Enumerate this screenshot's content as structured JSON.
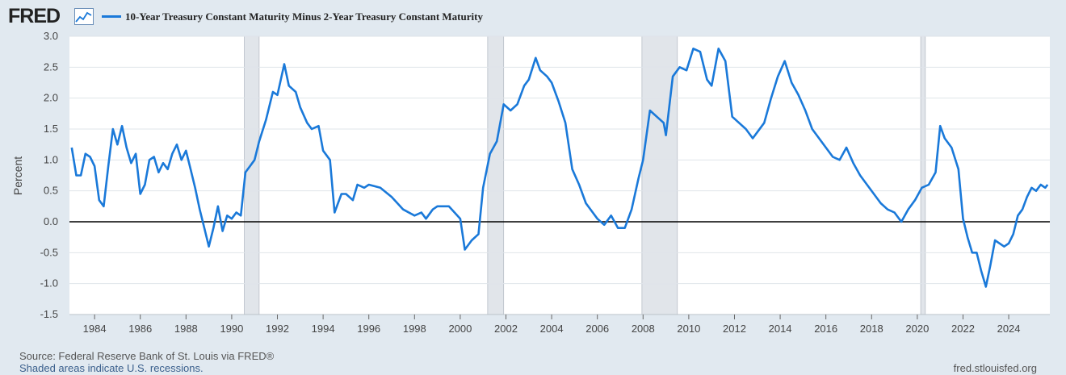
{
  "header": {
    "logo": "FRED",
    "legend_label": "10-Year Treasury Constant Maturity Minus 2-Year Treasury Constant Maturity"
  },
  "footer": {
    "source": "Source: Federal Reserve Bank of St. Louis via FRED®",
    "recession_note": "Shaded areas indicate U.S. recessions.",
    "site": "fred.stlouisfed.org"
  },
  "colors": {
    "line": "#1a79d9",
    "background": "#e1e9f0",
    "plot": "#ffffff",
    "recession": "#e1e5ea",
    "grid": "#dfe4ea"
  },
  "chart_data": {
    "type": "line",
    "title": "",
    "xlabel": "",
    "ylabel": "Percent",
    "xlim": [
      1982.9,
      2025.8
    ],
    "ylim": [
      -1.5,
      3.0
    ],
    "grid": true,
    "zero_line": true,
    "y_ticks": [
      3.0,
      2.5,
      2.0,
      1.5,
      1.0,
      0.5,
      0.0,
      -0.5,
      -1.0,
      -1.5
    ],
    "y_tick_labels": [
      "3.0",
      "2.5",
      "2.0",
      "1.5",
      "1.0",
      "0.5",
      "0.0",
      "-0.5",
      "-1.0",
      "-1.5"
    ],
    "x_ticks": [
      1984,
      1986,
      1988,
      1990,
      1992,
      1994,
      1996,
      1998,
      2000,
      2002,
      2004,
      2006,
      2008,
      2010,
      2012,
      2014,
      2016,
      2018,
      2020,
      2022,
      2024
    ],
    "x_tick_labels": [
      "1984",
      "1986",
      "1988",
      "1990",
      "1992",
      "1994",
      "1996",
      "1998",
      "2000",
      "2002",
      "2004",
      "2006",
      "2008",
      "2010",
      "2012",
      "2014",
      "2016",
      "2018",
      "2020",
      "2022",
      "2024"
    ],
    "recessions": [
      [
        1990.55,
        1991.2
      ],
      [
        2001.2,
        2001.9
      ],
      [
        2007.95,
        2009.5
      ],
      [
        2020.15,
        2020.35
      ]
    ],
    "series": [
      {
        "name": "10-Year Treasury Constant Maturity Minus 2-Year Treasury Constant Maturity",
        "x": [
          1983.0,
          1983.2,
          1983.4,
          1983.6,
          1983.8,
          1984.0,
          1984.2,
          1984.4,
          1984.6,
          1984.8,
          1985.0,
          1985.2,
          1985.4,
          1985.6,
          1985.8,
          1986.0,
          1986.2,
          1986.4,
          1986.6,
          1986.8,
          1987.0,
          1987.2,
          1987.4,
          1987.6,
          1987.8,
          1988.0,
          1988.2,
          1988.4,
          1988.6,
          1988.8,
          1989.0,
          1989.2,
          1989.4,
          1989.6,
          1989.8,
          1990.0,
          1990.2,
          1990.4,
          1990.6,
          1990.8,
          1991.0,
          1991.2,
          1991.5,
          1991.8,
          1992.0,
          1992.3,
          1992.5,
          1992.8,
          1993.0,
          1993.3,
          1993.5,
          1993.8,
          1994.0,
          1994.3,
          1994.5,
          1994.8,
          1995.0,
          1995.3,
          1995.5,
          1995.8,
          1996.0,
          1996.5,
          1997.0,
          1997.5,
          1998.0,
          1998.3,
          1998.5,
          1998.8,
          1999.0,
          1999.5,
          2000.0,
          2000.2,
          2000.5,
          2000.8,
          2001.0,
          2001.3,
          2001.6,
          2001.9,
          2002.2,
          2002.5,
          2002.8,
          2003.0,
          2003.3,
          2003.5,
          2003.8,
          2004.0,
          2004.3,
          2004.6,
          2004.9,
          2005.2,
          2005.5,
          2005.8,
          2006.0,
          2006.3,
          2006.6,
          2006.9,
          2007.2,
          2007.5,
          2007.8,
          2008.0,
          2008.3,
          2008.6,
          2008.9,
          2009.0,
          2009.3,
          2009.6,
          2009.9,
          2010.2,
          2010.5,
          2010.8,
          2011.0,
          2011.3,
          2011.6,
          2011.9,
          2012.2,
          2012.5,
          2012.8,
          2013.0,
          2013.3,
          2013.6,
          2013.9,
          2014.2,
          2014.5,
          2014.8,
          2015.1,
          2015.4,
          2015.7,
          2016.0,
          2016.3,
          2016.6,
          2016.9,
          2017.2,
          2017.5,
          2017.8,
          2018.1,
          2018.4,
          2018.7,
          2019.0,
          2019.3,
          2019.6,
          2019.9,
          2020.2,
          2020.5,
          2020.8,
          2021.0,
          2021.2,
          2021.5,
          2021.8,
          2022.0,
          2022.2,
          2022.4,
          2022.6,
          2022.8,
          2023.0,
          2023.2,
          2023.4,
          2023.6,
          2023.8,
          2024.0,
          2024.2,
          2024.4,
          2024.6,
          2024.8,
          2025.0,
          2025.2,
          2025.4,
          2025.6,
          2025.7
        ],
        "values": [
          1.2,
          0.75,
          0.75,
          1.1,
          1.05,
          0.9,
          0.35,
          0.25,
          0.9,
          1.5,
          1.25,
          1.55,
          1.2,
          0.95,
          1.1,
          0.45,
          0.6,
          1.0,
          1.05,
          0.8,
          0.95,
          0.85,
          1.1,
          1.25,
          1.0,
          1.15,
          0.85,
          0.55,
          0.2,
          -0.1,
          -0.4,
          -0.1,
          0.25,
          -0.15,
          0.1,
          0.05,
          0.15,
          0.1,
          0.8,
          0.9,
          1.0,
          1.3,
          1.65,
          2.1,
          2.05,
          2.55,
          2.2,
          2.1,
          1.85,
          1.6,
          1.5,
          1.55,
          1.15,
          1.0,
          0.15,
          0.45,
          0.45,
          0.35,
          0.6,
          0.55,
          0.6,
          0.55,
          0.4,
          0.2,
          0.1,
          0.15,
          0.05,
          0.2,
          0.25,
          0.25,
          0.05,
          -0.45,
          -0.3,
          -0.2,
          0.55,
          1.1,
          1.3,
          1.9,
          1.8,
          1.9,
          2.2,
          2.3,
          2.65,
          2.45,
          2.35,
          2.25,
          1.95,
          1.6,
          0.85,
          0.6,
          0.3,
          0.15,
          0.05,
          -0.05,
          0.1,
          -0.1,
          -0.1,
          0.2,
          0.7,
          1.0,
          1.8,
          1.7,
          1.6,
          1.4,
          2.35,
          2.5,
          2.45,
          2.8,
          2.75,
          2.3,
          2.2,
          2.8,
          2.6,
          1.7,
          1.6,
          1.5,
          1.35,
          1.45,
          1.6,
          2.0,
          2.35,
          2.6,
          2.25,
          2.05,
          1.8,
          1.5,
          1.35,
          1.2,
          1.05,
          1.0,
          1.2,
          0.95,
          0.75,
          0.6,
          0.45,
          0.3,
          0.2,
          0.15,
          0.0,
          0.2,
          0.35,
          0.55,
          0.6,
          0.8,
          1.55,
          1.35,
          1.2,
          0.85,
          0.05,
          -0.25,
          -0.5,
          -0.5,
          -0.8,
          -1.05,
          -0.7,
          -0.3,
          -0.35,
          -0.4,
          -0.35,
          -0.2,
          0.1,
          0.2,
          0.4,
          0.55,
          0.5,
          0.6,
          0.55,
          0.6
        ]
      }
    ]
  }
}
